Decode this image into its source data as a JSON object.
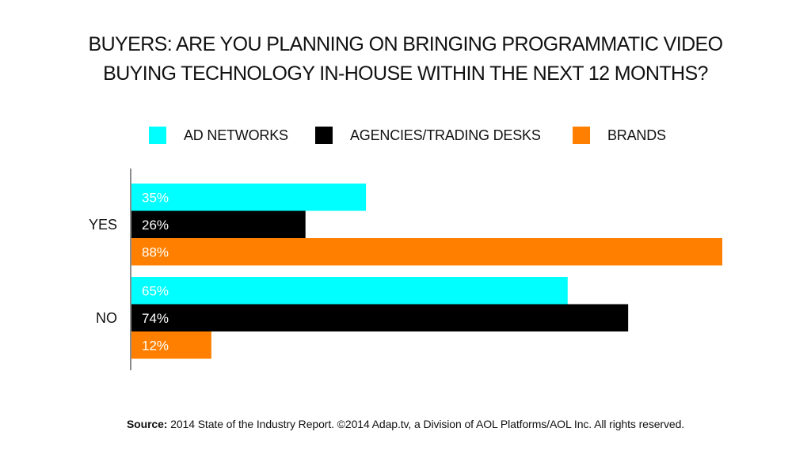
{
  "chart_data": {
    "type": "bar",
    "orientation": "horizontal",
    "title": "BUYERS: ARE YOU PLANNING ON BRINGING PROGRAMMATIC VIDEO BUYING TECHNOLOGY IN-HOUSE WITHIN THE NEXT 12 MONTHS?",
    "title_lines": [
      "BUYERS: ARE YOU PLANNING ON BRINGING PROGRAMMATIC VIDEO",
      "BUYING TECHNOLOGY IN-HOUSE WITHIN THE NEXT 12 MONTHS?"
    ],
    "categories": [
      "YES",
      "NO"
    ],
    "series": [
      {
        "name": "AD NETWORKS",
        "color": "#00FFFF",
        "values": [
          35,
          65
        ]
      },
      {
        "name": "AGENCIES/TRADING DESKS",
        "color": "#000000",
        "values": [
          26,
          74
        ]
      },
      {
        "name": "BRANDS",
        "color": "#FF8000",
        "values": [
          88,
          12
        ]
      }
    ],
    "value_suffix": "%",
    "xlabel": "",
    "ylabel": "",
    "xlim": [
      0,
      88
    ],
    "grid": false,
    "legend_position": "top"
  },
  "footer": {
    "source_label": "Source:",
    "source_text": " 2014 State of the Industry Report. ©2014 Adap.tv, a Division of AOL Platforms/AOL Inc. All rights reserved."
  }
}
